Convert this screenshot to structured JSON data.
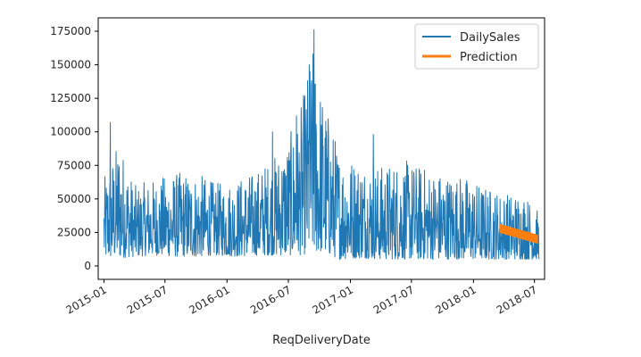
{
  "chart_data": {
    "type": "line",
    "title": "",
    "xlabel": "ReqDeliveryDate",
    "ylabel": "",
    "x_range": [
      "2014-12-15",
      "2018-07-31"
    ],
    "ylim": [
      -10000,
      185000
    ],
    "x_ticks": [
      "2015-01",
      "2015-07",
      "2016-01",
      "2016-07",
      "2017-01",
      "2017-07",
      "2018-01",
      "2018-07"
    ],
    "y_ticks": [
      0,
      25000,
      50000,
      75000,
      100000,
      125000,
      150000,
      175000
    ],
    "grid": false,
    "legend_position": "top-right",
    "series": [
      {
        "name": "DailySales",
        "color": "#1f77b4",
        "style": "daily",
        "x": [
          "2015-01-01",
          "2015-02-15",
          "2015-04-01",
          "2015-06-01",
          "2015-08-01",
          "2015-10-01",
          "2015-12-01",
          "2016-02-01",
          "2016-04-01",
          "2016-06-01",
          "2016-08-01",
          "2016-09-10",
          "2016-10-10",
          "2016-12-01",
          "2017-02-01",
          "2017-04-01",
          "2017-06-01",
          "2017-08-01",
          "2017-10-01",
          "2017-12-01",
          "2018-02-01",
          "2018-04-01",
          "2018-06-01",
          "2018-07-15"
        ],
        "low": [
          5000,
          6000,
          7000,
          8000,
          7000,
          7000,
          8000,
          7000,
          8000,
          8000,
          8000,
          10000,
          10000,
          5000,
          6000,
          5000,
          5000,
          5000,
          5000,
          5000,
          5000,
          5000,
          5000,
          5000
        ],
        "high": [
          65000,
          95000,
          60000,
          65000,
          70000,
          70000,
          62000,
          65000,
          72000,
          85000,
          110000,
          165000,
          130000,
          85000,
          80000,
          75000,
          80000,
          75000,
          70000,
          68000,
          60000,
          55000,
          55000,
          40000
        ],
        "peaks": [
          {
            "x": "2015-01-20",
            "y": 107000
          },
          {
            "x": "2016-05-15",
            "y": 100000
          },
          {
            "x": "2016-07-25",
            "y": 112000
          },
          {
            "x": "2016-09-01",
            "y": 150000
          },
          {
            "x": "2016-09-15",
            "y": 176000
          },
          {
            "x": "2017-03-10",
            "y": 98000
          }
        ]
      },
      {
        "name": "Prediction",
        "color": "#ff7f0e",
        "style": "band",
        "x": [
          "2018-03-20",
          "2018-07-10"
        ],
        "low": [
          25000,
          17000
        ],
        "high": [
          31000,
          23000
        ]
      }
    ]
  }
}
